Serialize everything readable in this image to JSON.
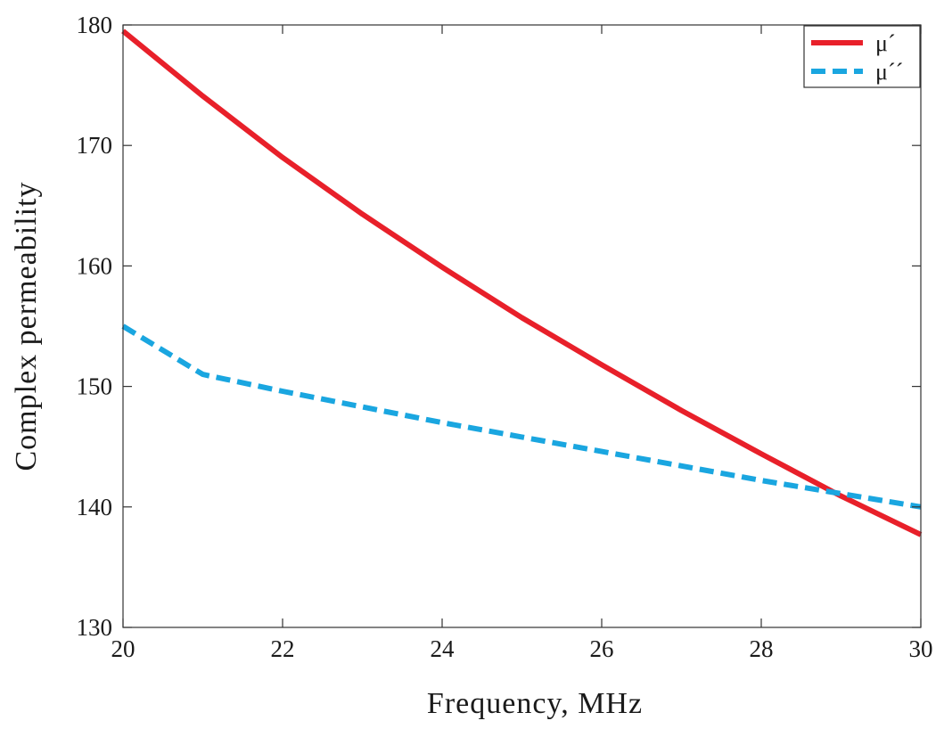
{
  "chart_data": {
    "type": "line",
    "title": "",
    "xlabel": "Frequency, MHz",
    "ylabel": "Complex permeability",
    "xlim": [
      20,
      30
    ],
    "ylim": [
      130,
      180
    ],
    "xticks": [
      20,
      22,
      24,
      26,
      28,
      30
    ],
    "yticks": [
      130,
      140,
      150,
      160,
      170,
      180
    ],
    "grid": false,
    "legend_position": "top-right",
    "series": [
      {
        "name": "μ´",
        "color": "#e8202a",
        "style": "solid",
        "x": [
          20,
          21,
          22,
          23,
          24,
          25,
          26,
          27,
          28,
          29,
          30
        ],
        "y": [
          179.5,
          174.1,
          169.0,
          164.3,
          159.9,
          155.7,
          151.8,
          148.0,
          144.4,
          140.9,
          137.7
        ]
      },
      {
        "name": "μ´´",
        "color": "#1aa6e0",
        "style": "dashed",
        "x": [
          20,
          21,
          22,
          23,
          24,
          25,
          26,
          27,
          28,
          29,
          30
        ],
        "y": [
          155.0,
          151.0,
          149.6,
          148.3,
          147.0,
          145.8,
          144.6,
          143.4,
          142.2,
          141.1,
          140.0
        ]
      }
    ]
  }
}
